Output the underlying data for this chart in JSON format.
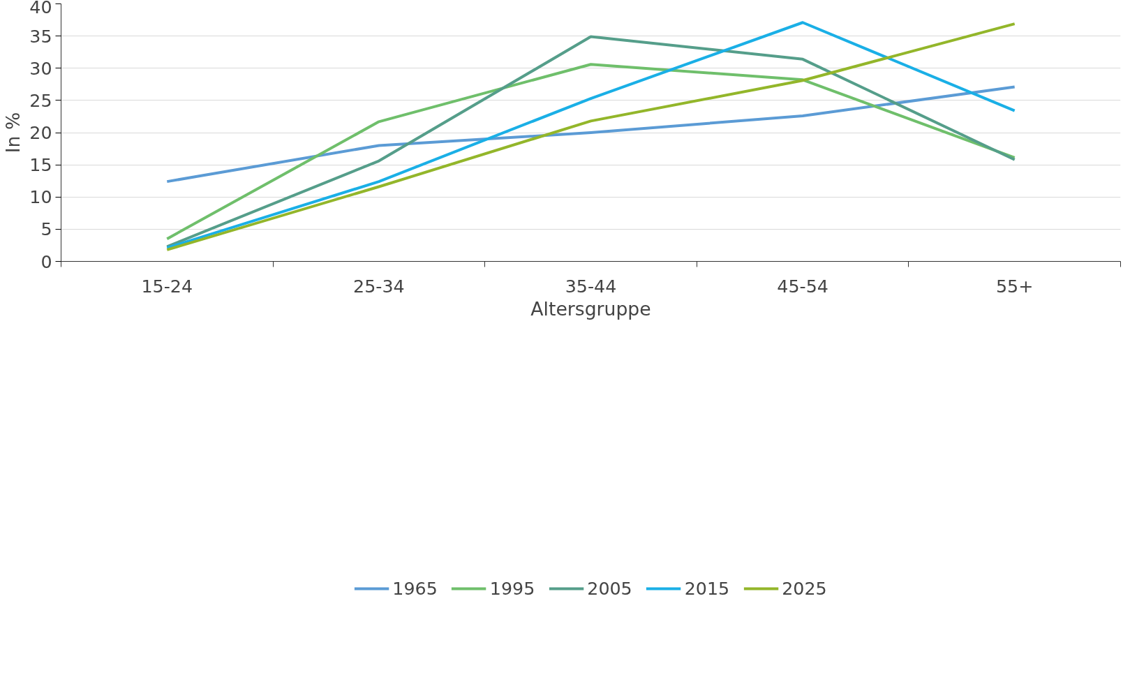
{
  "chart_data": {
    "type": "line",
    "xlabel": "Altersgruppe",
    "ylabel": "In %",
    "categories": [
      "15-24",
      "25-34",
      "35-44",
      "45-54",
      "55+"
    ],
    "ylim": [
      0,
      40
    ],
    "yticks": [
      0,
      5,
      10,
      15,
      20,
      25,
      30,
      35,
      40
    ],
    "grid": "y",
    "legend": "bottom",
    "marker": "none",
    "line_style": "solid",
    "series": [
      {
        "name": "1965",
        "color": "#5b9bd5",
        "values": [
          12.4,
          18.0,
          20.0,
          22.6,
          27.1
        ]
      },
      {
        "name": "1995",
        "color": "#6fbf6b",
        "values": [
          3.5,
          21.7,
          30.6,
          28.2,
          16.1
        ]
      },
      {
        "name": "2005",
        "color": "#559e8a",
        "values": [
          2.3,
          15.6,
          34.9,
          31.4,
          15.8
        ]
      },
      {
        "name": "2015",
        "color": "#1aafe6",
        "values": [
          2.1,
          12.4,
          25.3,
          37.1,
          23.4
        ]
      },
      {
        "name": "2025",
        "color": "#93b62a",
        "values": [
          1.8,
          11.6,
          21.8,
          28.1,
          36.9
        ]
      }
    ]
  }
}
